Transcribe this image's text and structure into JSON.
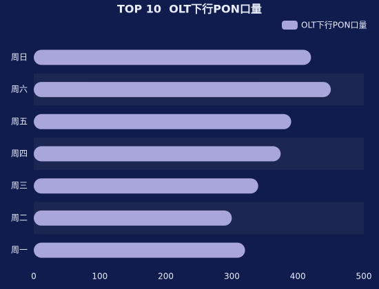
{
  "chart_data": {
    "type": "hbar",
    "title": "TOP 10  OLT下行PON口量",
    "categories": [
      "周一",
      "周二",
      "周三",
      "周四",
      "周五",
      "周六",
      "周日"
    ],
    "series": [
      {
        "name": "OLT下行PON口量",
        "color": "#a9a6db",
        "values": [
          320,
          300,
          340,
          374,
          390,
          450,
          420
        ]
      }
    ],
    "xlim": [
      0,
      500
    ],
    "xticks": [
      0,
      100,
      200,
      300,
      400,
      500
    ],
    "split_area": true,
    "legend": "top-right"
  }
}
